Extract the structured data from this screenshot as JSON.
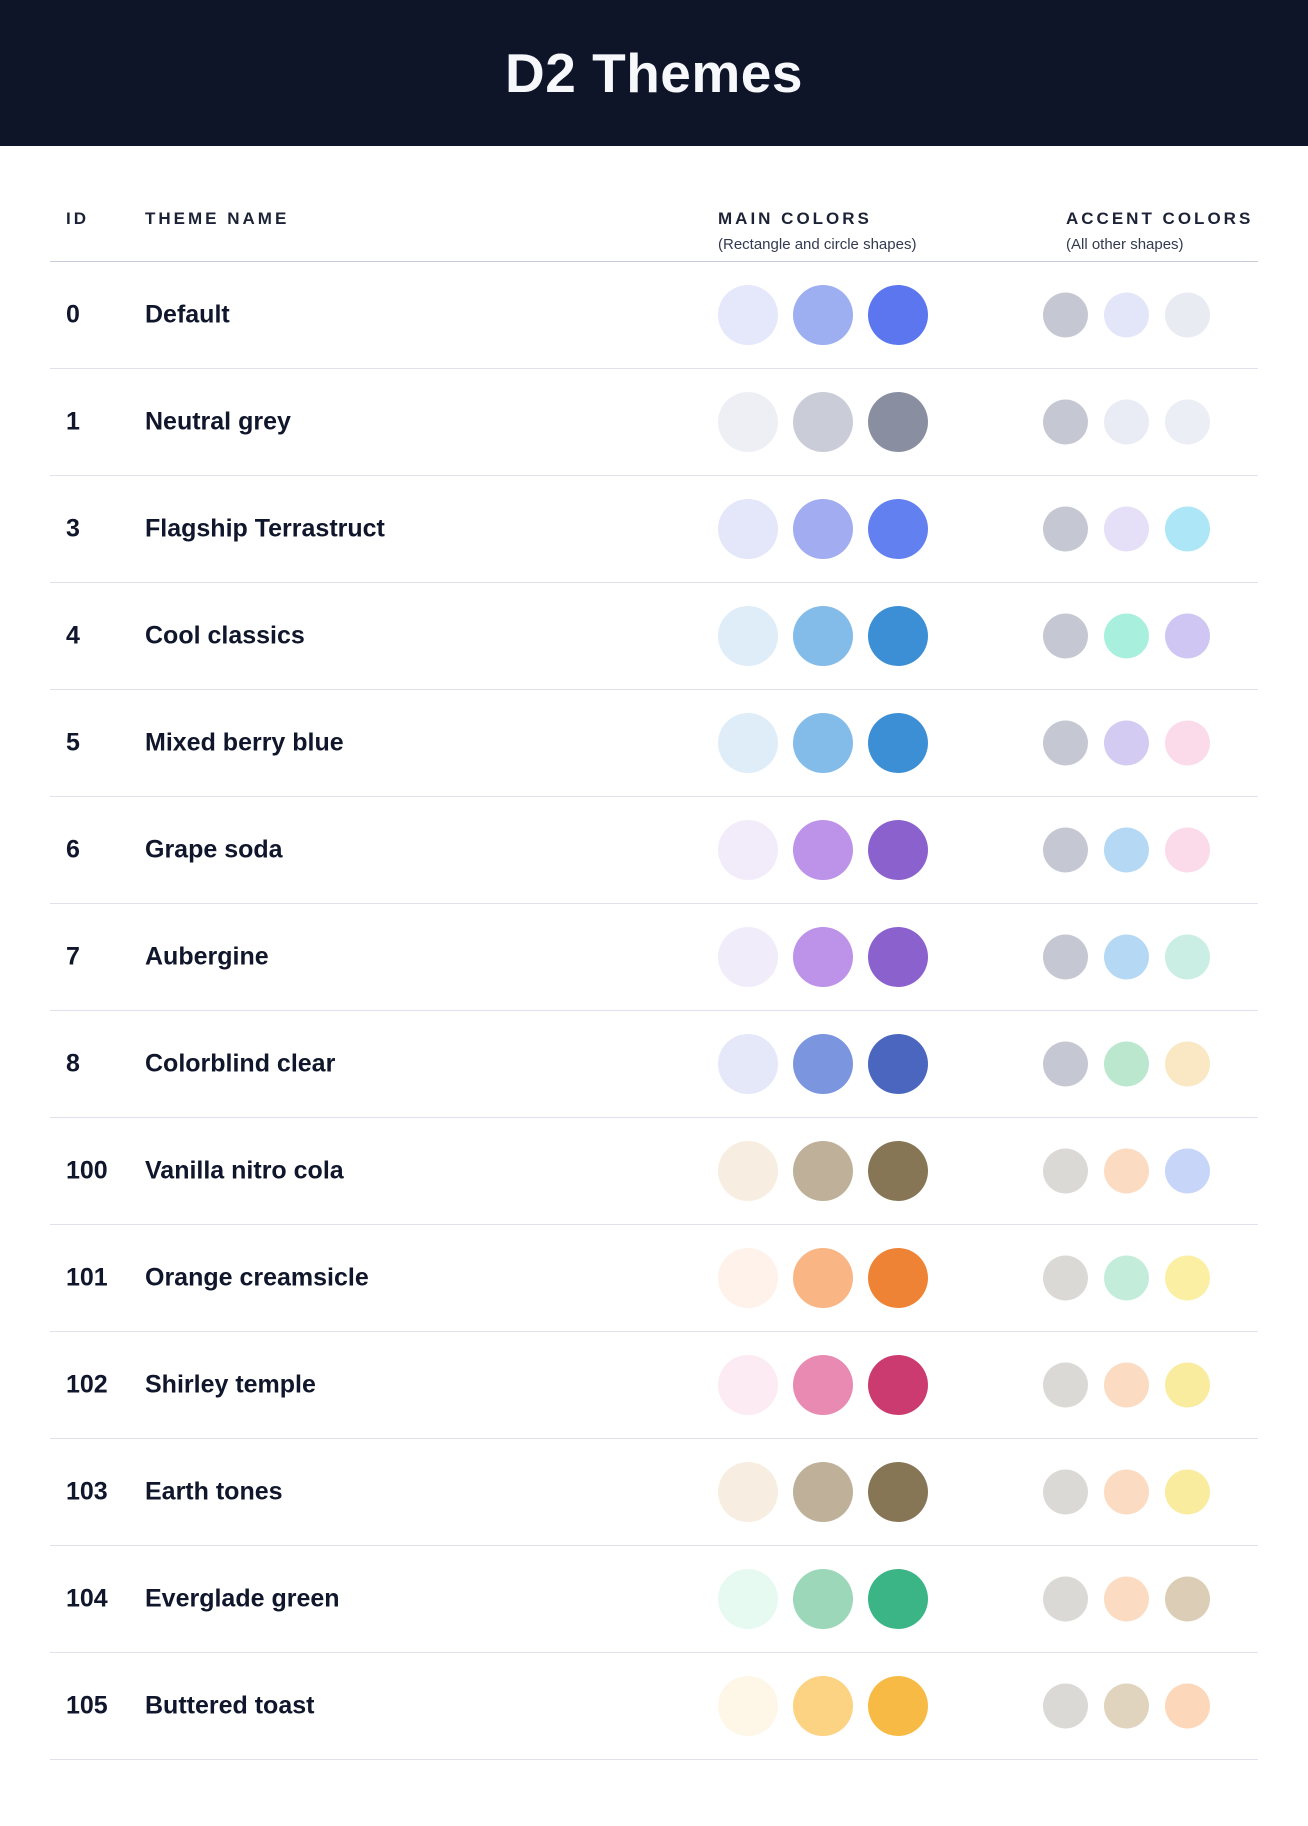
{
  "title_bar": {
    "title": "D2 Themes",
    "background": "#0F1529",
    "text_color": "#F7F8FB"
  },
  "table": {
    "columns": {
      "id": "ID",
      "name": "THEME NAME",
      "main": "MAIN COLORS",
      "main_sub": "(Rectangle and circle shapes)",
      "accent": "ACCENT COLORS",
      "accent_sub": "(All other shapes)"
    },
    "rows": [
      {
        "id": "0",
        "name": "Default",
        "main_colors": [
          "#E5E8FA",
          "#9DAFF1",
          "#5B76EE"
        ],
        "accent_colors": [
          "#C5C8D2",
          "#E3E6F9",
          "#E9EBF3"
        ]
      },
      {
        "id": "1",
        "name": "Neutral grey",
        "main_colors": [
          "#EDEFF5",
          "#CACDD7",
          "#8A8EA1"
        ],
        "accent_colors": [
          "#C5C8D2",
          "#EAECF5",
          "#ECEEF5"
        ]
      },
      {
        "id": "3",
        "name": "Flagship Terrastruct",
        "main_colors": [
          "#E4E7FA",
          "#A1ADF0",
          "#6380F1"
        ],
        "accent_colors": [
          "#C5C8D2",
          "#E6DFF8",
          "#ADE6F7"
        ]
      },
      {
        "id": "4",
        "name": "Cool classics",
        "main_colors": [
          "#DFEDF9",
          "#84BCE9",
          "#3D8FD5"
        ],
        "accent_colors": [
          "#C5C8D2",
          "#A8F0DD",
          "#D0C6F3"
        ]
      },
      {
        "id": "5",
        "name": "Mixed berry blue",
        "main_colors": [
          "#DFEDF9",
          "#84BCE9",
          "#3D8FD5"
        ],
        "accent_colors": [
          "#C5C8D2",
          "#D4CBF3",
          "#FBDBEA"
        ]
      },
      {
        "id": "6",
        "name": "Grape soda",
        "main_colors": [
          "#F2ECFA",
          "#BC93E9",
          "#8B61CD"
        ],
        "accent_colors": [
          "#C5C8D2",
          "#B5D8F5",
          "#FBDAE9"
        ]
      },
      {
        "id": "7",
        "name": "Aubergine",
        "main_colors": [
          "#F1ECFA",
          "#BC93E9",
          "#8B61CD"
        ],
        "accent_colors": [
          "#C5C8D2",
          "#B5D8F5",
          "#CBEEE4"
        ]
      },
      {
        "id": "8",
        "name": "Colorblind clear",
        "main_colors": [
          "#E4E8F9",
          "#7B96DF",
          "#4A66BF"
        ],
        "accent_colors": [
          "#C5C8D2",
          "#BBE7CE",
          "#FAE7C3"
        ]
      },
      {
        "id": "100",
        "name": "Vanilla nitro cola",
        "main_colors": [
          "#F7EEE1",
          "#BFB199",
          "#867655"
        ],
        "accent_colors": [
          "#DBD9D5",
          "#FBDCC2",
          "#C7D5F8"
        ]
      },
      {
        "id": "101",
        "name": "Orange creamsicle",
        "main_colors": [
          "#FEF2EA",
          "#F9B583",
          "#EE8336"
        ],
        "accent_colors": [
          "#DBD9D5",
          "#C3EDDA",
          "#FBEFA3"
        ]
      },
      {
        "id": "102",
        "name": "Shirley temple",
        "main_colors": [
          "#FCEBF2",
          "#E88AB1",
          "#CC3B70"
        ],
        "accent_colors": [
          "#DBD9D5",
          "#FBDCC2",
          "#FAEC9E"
        ]
      },
      {
        "id": "103",
        "name": "Earth tones",
        "main_colors": [
          "#F7EEE1",
          "#BFB199",
          "#867655"
        ],
        "accent_colors": [
          "#DBD9D5",
          "#FBDCC2",
          "#FAEC9E"
        ]
      },
      {
        "id": "104",
        "name": "Everglade green",
        "main_colors": [
          "#E7FAF2",
          "#9CD7B9",
          "#3BB586"
        ],
        "accent_colors": [
          "#DBD9D5",
          "#FBDCC2",
          "#DCCEB6"
        ]
      },
      {
        "id": "105",
        "name": "Buttered toast",
        "main_colors": [
          "#FEF7E8",
          "#FCD283",
          "#F7BB45"
        ],
        "accent_colors": [
          "#DBD9D5",
          "#E0D4BF",
          "#FDD7BA"
        ]
      }
    ]
  },
  "styles": {
    "heading_text": "#1C2337",
    "subtext": "#333A50",
    "body_text": "#10162B",
    "row_divider": "#DFE2EC",
    "header_divider": "#C7CBDA"
  }
}
